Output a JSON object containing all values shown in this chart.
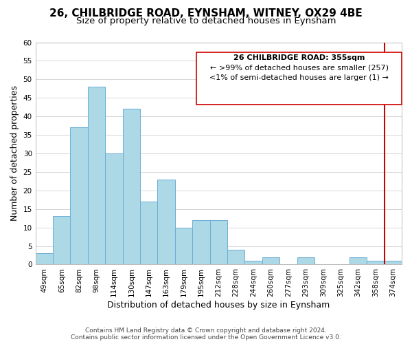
{
  "title": "26, CHILBRIDGE ROAD, EYNSHAM, WITNEY, OX29 4BE",
  "subtitle": "Size of property relative to detached houses in Eynsham",
  "xlabel": "Distribution of detached houses by size in Eynsham",
  "ylabel": "Number of detached properties",
  "bin_labels": [
    "49sqm",
    "65sqm",
    "82sqm",
    "98sqm",
    "114sqm",
    "130sqm",
    "147sqm",
    "163sqm",
    "179sqm",
    "195sqm",
    "212sqm",
    "228sqm",
    "244sqm",
    "260sqm",
    "277sqm",
    "293sqm",
    "309sqm",
    "325sqm",
    "342sqm",
    "358sqm",
    "374sqm"
  ],
  "bar_heights": [
    3,
    13,
    37,
    48,
    30,
    42,
    17,
    23,
    10,
    12,
    12,
    4,
    1,
    2,
    0,
    2,
    0,
    0,
    2,
    1,
    1
  ],
  "bar_color": "#add8e6",
  "bar_edge_color": "#6baed6",
  "highlight_line_color": "#cc0000",
  "ylim": [
    0,
    60
  ],
  "yticks": [
    0,
    5,
    10,
    15,
    20,
    25,
    30,
    35,
    40,
    45,
    50,
    55,
    60
  ],
  "legend_title": "26 CHILBRIDGE ROAD: 355sqm",
  "legend_line1": "← >99% of detached houses are smaller (257)",
  "legend_line2": "<1% of semi-detached houses are larger (1) →",
  "footer1": "Contains HM Land Registry data © Crown copyright and database right 2024.",
  "footer2": "Contains public sector information licensed under the Open Government Licence v3.0.",
  "background_color": "#ffffff",
  "grid_color": "#d0d0d0",
  "title_fontsize": 11,
  "subtitle_fontsize": 9.5,
  "axis_label_fontsize": 9,
  "tick_fontsize": 7.5,
  "legend_fontsize": 8,
  "footer_fontsize": 6.5
}
